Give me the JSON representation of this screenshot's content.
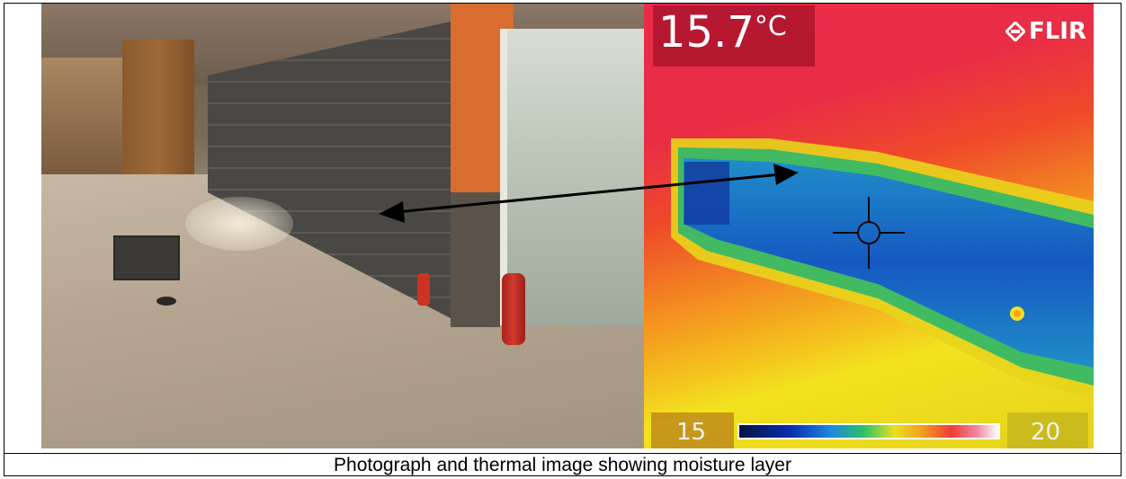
{
  "thermal": {
    "temperature_value": "15.7",
    "temperature_unit": "°C",
    "brand": "FLIR",
    "scale_min": "15",
    "scale_max": "20"
  },
  "caption": "Photograph and thermal image showing moisture layer"
}
